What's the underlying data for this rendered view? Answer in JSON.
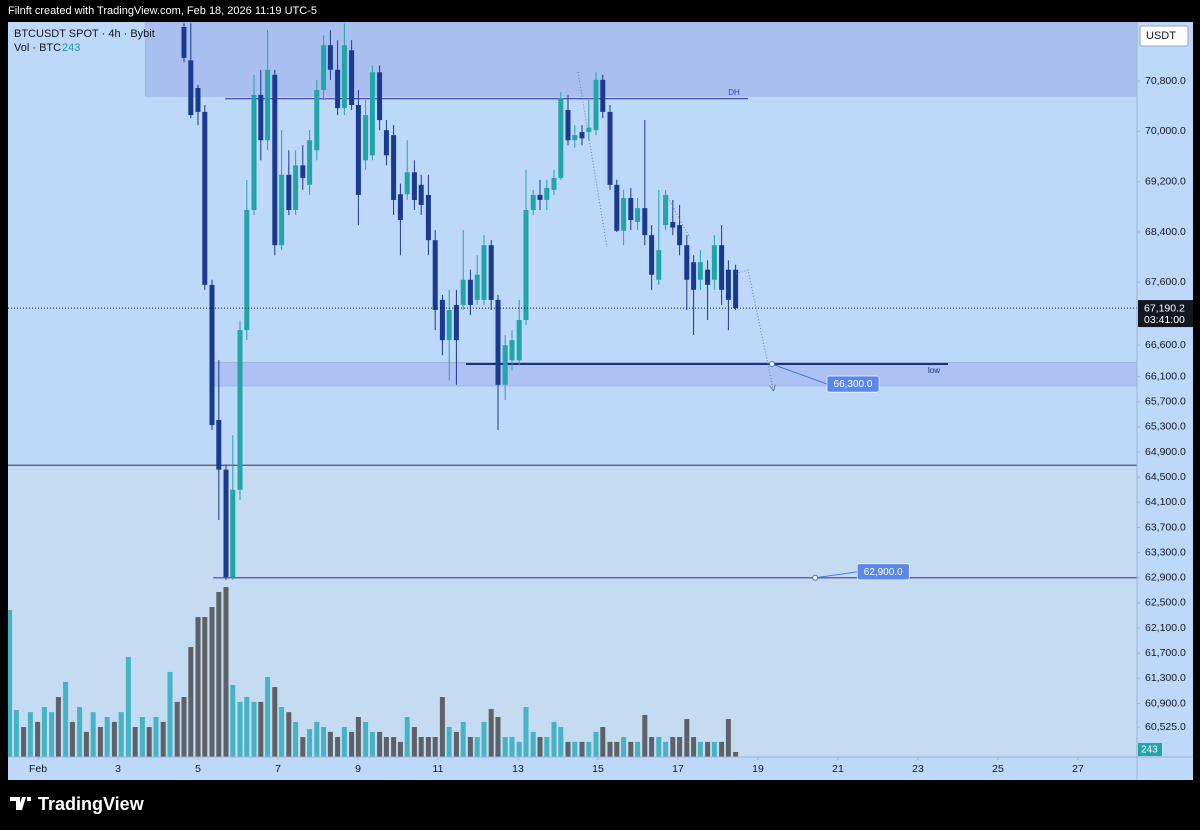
{
  "header": "Filnft created with TradingView.com, Feb 18, 2026 11:19 UTC-5",
  "logo": "TradingView",
  "chart_data": {
    "type": "candlestick",
    "title": "BTCUSDT SPOT · 4h · Bybit",
    "currency": "USDT",
    "countdown": "03:41:00",
    "up_color": "#22a5a9",
    "down_color": "#1a3a8e",
    "grid": false,
    "xlim": [
      0.25,
      28.475
    ],
    "xticks": [
      {
        "value": 1,
        "label": "Feb"
      },
      3,
      5,
      7,
      9,
      11,
      13,
      15,
      17,
      19,
      21,
      23,
      25,
      27
    ],
    "ylim": [
      60050,
      71740
    ],
    "yticks": [
      {
        "value": 70800,
        "label": "70,800.0"
      },
      {
        "value": 70000,
        "label": "70,000.0"
      },
      {
        "value": 69200,
        "label": "69,200.0"
      },
      {
        "value": 68400,
        "label": "68,400.0"
      },
      {
        "value": 67600,
        "label": "67,600.0"
      },
      {
        "value": 66600,
        "label": "66,600.0"
      },
      {
        "value": 66100,
        "label": "66,100.0"
      },
      {
        "value": 65700,
        "label": "65,700.0"
      },
      {
        "value": 65300,
        "label": "65,300.0"
      },
      {
        "value": 64900,
        "label": "64,900.0"
      },
      {
        "value": 64500,
        "label": "64,500.0"
      },
      {
        "value": 64100,
        "label": "64,100.0"
      },
      {
        "value": 63700,
        "label": "63,700.0"
      },
      {
        "value": 63300,
        "label": "63,300.0"
      },
      {
        "value": 62900,
        "label": "62,900.0"
      },
      {
        "value": 62500,
        "label": "62,500.0"
      },
      {
        "value": 62100,
        "label": "62,100.0"
      },
      {
        "value": 61700,
        "label": "61,700.0"
      },
      {
        "value": 61300,
        "label": "61,300.0"
      },
      {
        "value": 60900,
        "label": "60,900.0"
      },
      {
        "value": 60525,
        "label": "60,525.0"
      }
    ],
    "x": [
      4.65,
      4.82,
      5.0,
      5.17,
      5.35,
      5.52,
      5.7,
      5.87,
      6.05,
      6.22,
      6.4,
      6.57,
      6.74,
      6.92,
      7.09,
      7.27,
      7.44,
      7.62,
      7.79,
      7.97,
      8.14,
      8.31,
      8.49,
      8.66,
      8.84,
      9.01,
      9.19,
      9.36,
      9.54,
      9.71,
      9.89,
      10.06,
      10.23,
      10.41,
      10.58,
      10.76,
      10.93,
      11.11,
      11.28,
      11.46,
      11.63,
      11.81,
      11.98,
      12.15,
      12.33,
      12.5,
      12.68,
      12.85,
      13.03,
      13.2,
      13.38,
      13.55,
      13.72,
      13.9,
      14.07,
      14.25,
      14.42,
      14.6,
      14.77,
      14.95,
      15.12,
      15.3,
      15.47,
      15.64,
      15.82,
      15.99,
      16.17,
      16.34,
      16.52,
      16.69,
      16.87,
      17.04,
      17.22,
      17.39,
      17.56,
      17.74,
      17.91,
      18.09,
      18.26,
      18.44
    ],
    "open": [
      71660,
      71130,
      70690,
      70310,
      67560,
      65410,
      64620,
      62910,
      64300,
      66840,
      68750,
      70580,
      69860,
      70900,
      68190,
      69310,
      68750,
      69460,
      69150,
      69700,
      70660,
      71370,
      70980,
      70370,
      71290,
      70420,
      69540,
      69620,
      70940,
      70020,
      69940,
      69000,
      69000,
      69350,
      69150,
      68990,
      68270,
      67320,
      66680,
      67240,
      67240,
      67640,
      67320,
      67320,
      68190,
      67320,
      65970,
      66360,
      66360,
      67000,
      68750,
      68990,
      68910,
      69070,
      69260,
      70340,
      69860,
      69990,
      69990,
      70020,
      70820,
      70310,
      69150,
      68420,
      68940,
      68560,
      68780,
      68350,
      67640,
      68510,
      68560,
      68510,
      68190,
      67920,
      67640,
      67800,
      67640,
      68190,
      67800,
      67800
    ],
    "high": [
      71720,
      71720,
      70740,
      70420,
      67640,
      66360,
      64700,
      65170,
      66990,
      69230,
      70900,
      70980,
      71610,
      70980,
      70020,
      69700,
      69700,
      69780,
      70020,
      70820,
      71530,
      71610,
      71450,
      71720,
      71450,
      70660,
      70500,
      71050,
      71050,
      70180,
      70100,
      69170,
      69860,
      69540,
      69310,
      69310,
      68430,
      67400,
      67480,
      67480,
      68430,
      67800,
      68030,
      68350,
      68270,
      67400,
      66760,
      66840,
      67320,
      69390,
      69070,
      69230,
      69230,
      69390,
      70620,
      70580,
      70100,
      70100,
      70500,
      70940,
      70900,
      70420,
      69230,
      69070,
      69100,
      68940,
      70180,
      68510,
      69070,
      69070,
      68910,
      68830,
      68350,
      68030,
      68110,
      67950,
      68350,
      68510,
      67950,
      67880
    ],
    "low": [
      71100,
      70210,
      70100,
      67480,
      65250,
      63820,
      62870,
      62870,
      64140,
      66680,
      68670,
      69540,
      69700,
      68030,
      68110,
      68670,
      68670,
      69070,
      68990,
      69540,
      70500,
      70820,
      70260,
      70260,
      70340,
      68510,
      69390,
      69540,
      70020,
      69460,
      68670,
      68030,
      68910,
      68750,
      68670,
      68030,
      66840,
      66440,
      66040,
      65970,
      67160,
      67080,
      67240,
      67240,
      67160,
      65250,
      65730,
      66200,
      66280,
      66920,
      68670,
      68750,
      68750,
      68990,
      69230,
      69780,
      69740,
      69780,
      69860,
      69940,
      70210,
      69070,
      68400,
      68190,
      68430,
      68430,
      68190,
      67480,
      67560,
      68430,
      68350,
      68030,
      67160,
      66760,
      67480,
      67000,
      67480,
      67240,
      66840,
      67160
    ],
    "close": [
      71170,
      70260,
      70310,
      67560,
      65330,
      64620,
      62910,
      64300,
      66840,
      68750,
      70580,
      69860,
      70980,
      68190,
      69310,
      68750,
      69460,
      69260,
      69860,
      70660,
      71370,
      70980,
      70370,
      71370,
      70420,
      68990,
      70260,
      70940,
      70180,
      69620,
      68910,
      68590,
      69350,
      68910,
      68830,
      68270,
      67160,
      66680,
      67160,
      66680,
      67640,
      67240,
      67720,
      68190,
      67320,
      65970,
      66600,
      66680,
      67000,
      68750,
      68990,
      68910,
      69100,
      69260,
      70530,
      69860,
      69940,
      69890,
      70060,
      70820,
      70310,
      69150,
      68420,
      68940,
      68590,
      68780,
      68350,
      67720,
      68110,
      68990,
      68470,
      68190,
      67640,
      67480,
      67920,
      67560,
      68190,
      67480,
      67320,
      67190.2
    ],
    "last_close_label": "67,190.2",
    "volume": {
      "name": "Vol · BTC",
      "up_color": "#45b3c4",
      "down_color": "#5d6168",
      "ylim": [
        0,
        10000
      ],
      "x": [
        0.29,
        0.46,
        0.64,
        0.81,
        0.99,
        1.16,
        1.34,
        1.51,
        1.69,
        1.86,
        2.04,
        2.21,
        2.38,
        2.56,
        2.73,
        2.91,
        3.08,
        3.26,
        3.43,
        3.61,
        3.78,
        3.95,
        4.13,
        4.3,
        4.48,
        4.65,
        4.82,
        5.0,
        5.17,
        5.35,
        5.52,
        5.7,
        5.87,
        6.05,
        6.22,
        6.4,
        6.57,
        6.74,
        6.92,
        7.09,
        7.27,
        7.44,
        7.62,
        7.79,
        7.97,
        8.14,
        8.31,
        8.49,
        8.66,
        8.84,
        9.01,
        9.19,
        9.36,
        9.54,
        9.71,
        9.89,
        10.06,
        10.23,
        10.41,
        10.58,
        10.76,
        10.93,
        11.11,
        11.28,
        11.46,
        11.63,
        11.81,
        11.98,
        12.15,
        12.33,
        12.5,
        12.68,
        12.85,
        13.03,
        13.2,
        13.38,
        13.55,
        13.72,
        13.9,
        14.07,
        14.25,
        14.42,
        14.6,
        14.77,
        14.95,
        15.12,
        15.3,
        15.47,
        15.64,
        15.82,
        15.99,
        16.17,
        16.34,
        16.52,
        16.69,
        16.87,
        17.04,
        17.22,
        17.39,
        17.56,
        17.74,
        17.91,
        18.09,
        18.26,
        18.44
      ],
      "values": [
        7200,
        2300,
        1470,
        2200,
        1720,
        2450,
        2200,
        2940,
        3680,
        1720,
        2450,
        1230,
        2200,
        1470,
        1960,
        1720,
        2200,
        4900,
        1470,
        1960,
        1470,
        1960,
        1720,
        4170,
        2700,
        2940,
        5390,
        6860,
        6860,
        7350,
        8090,
        8330,
        3530,
        2700,
        2940,
        2700,
        2700,
        3920,
        3430,
        2450,
        2200,
        1720,
        980,
        1370,
        1720,
        1470,
        1230,
        980,
        1470,
        1230,
        1960,
        1720,
        1230,
        1230,
        980,
        980,
        740,
        1960,
        1470,
        980,
        980,
        980,
        2940,
        1470,
        1230,
        1720,
        980,
        980,
        1720,
        2350,
        1960,
        980,
        980,
        740,
        2450,
        1230,
        980,
        980,
        1720,
        1470,
        740,
        740,
        740,
        740,
        1230,
        1470,
        740,
        740,
        980,
        740,
        740,
        2060,
        980,
        980,
        740,
        980,
        980,
        1860,
        980,
        740,
        740,
        740,
        740,
        1860,
        243
      ],
      "up": [
        true,
        true,
        false,
        true,
        false,
        true,
        true,
        false,
        true,
        false,
        true,
        false,
        true,
        false,
        true,
        false,
        true,
        true,
        false,
        true,
        false,
        true,
        false,
        true,
        false,
        false,
        false,
        false,
        false,
        false,
        false,
        false,
        true,
        true,
        true,
        true,
        false,
        true,
        false,
        true,
        false,
        true,
        false,
        true,
        true,
        true,
        false,
        false,
        true,
        false,
        false,
        true,
        true,
        false,
        false,
        false,
        false,
        true,
        false,
        false,
        false,
        false,
        false,
        true,
        false,
        true,
        false,
        true,
        true,
        false,
        false,
        true,
        true,
        true,
        true,
        true,
        false,
        true,
        true,
        true,
        false,
        true,
        false,
        true,
        true,
        false,
        false,
        false,
        true,
        false,
        true,
        false,
        false,
        true,
        true,
        false,
        false,
        false,
        false,
        true,
        false,
        true,
        false,
        false,
        false
      ]
    },
    "zones": [
      {
        "top": 71740,
        "bottom": 70560,
        "x_start": 3.68,
        "color": "#a9bff0"
      },
      {
        "top": 66330,
        "bottom": 65950,
        "x_start": 5.38,
        "color": "#adc2f2"
      }
    ],
    "levels": [
      {
        "value": 70520,
        "label": "DH",
        "x_start": 5.68,
        "x_end": 18.75,
        "color": "#3b3ab0"
      },
      {
        "value": 66300,
        "label": "low",
        "x_start": 11.7,
        "x_end": 23.75,
        "color": "#1c2f7a",
        "callout": "66,300.0",
        "anchor_x": 19.35
      },
      {
        "value": 62900,
        "x_start": 5.38,
        "color": "#4a3f9a",
        "callout": "62,900.0",
        "anchor_x": 20.43
      },
      {
        "value": 64690,
        "color": "#4b5670",
        "shade_below": true
      }
    ]
  }
}
